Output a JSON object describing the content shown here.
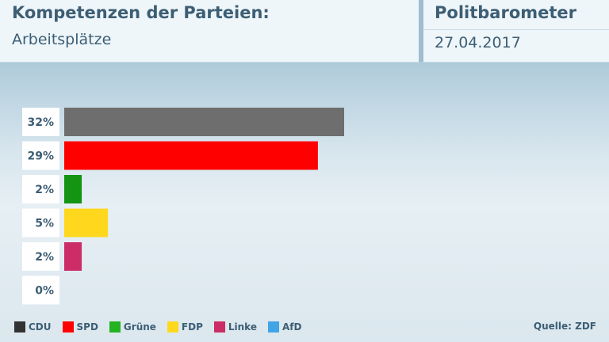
{
  "header": {
    "title": "Kompetenzen der Parteien:",
    "subtitle": "Arbeitsplätze",
    "brand": "Politbarometer",
    "date": "27.04.2017"
  },
  "chart_data": {
    "type": "bar",
    "orientation": "horizontal",
    "categories": [
      "CDU",
      "SPD",
      "Grüne",
      "FDP",
      "Linke",
      "AfD"
    ],
    "values": [
      32,
      29,
      2,
      5,
      2,
      0
    ],
    "value_labels": [
      "32%",
      "29%",
      "2%",
      "5%",
      "2%",
      "0%"
    ],
    "colors": [
      "#6e6e6e",
      "#ff0000",
      "#139413",
      "#ffd81e",
      "#cc2d66",
      "#41a4e4"
    ],
    "xlim": [
      0,
      32
    ],
    "grid": false,
    "legend_position": "bottom-left"
  },
  "legend": {
    "items": [
      {
        "label": "CDU",
        "color": "#333333"
      },
      {
        "label": "SPD",
        "color": "#ff0000"
      },
      {
        "label": "Grüne",
        "color": "#22b222"
      },
      {
        "label": "FDP",
        "color": "#ffd81e"
      },
      {
        "label": "Linke",
        "color": "#cc2d66"
      },
      {
        "label": "AfD",
        "color": "#41a4e4"
      }
    ]
  },
  "source": "Quelle: ZDF"
}
